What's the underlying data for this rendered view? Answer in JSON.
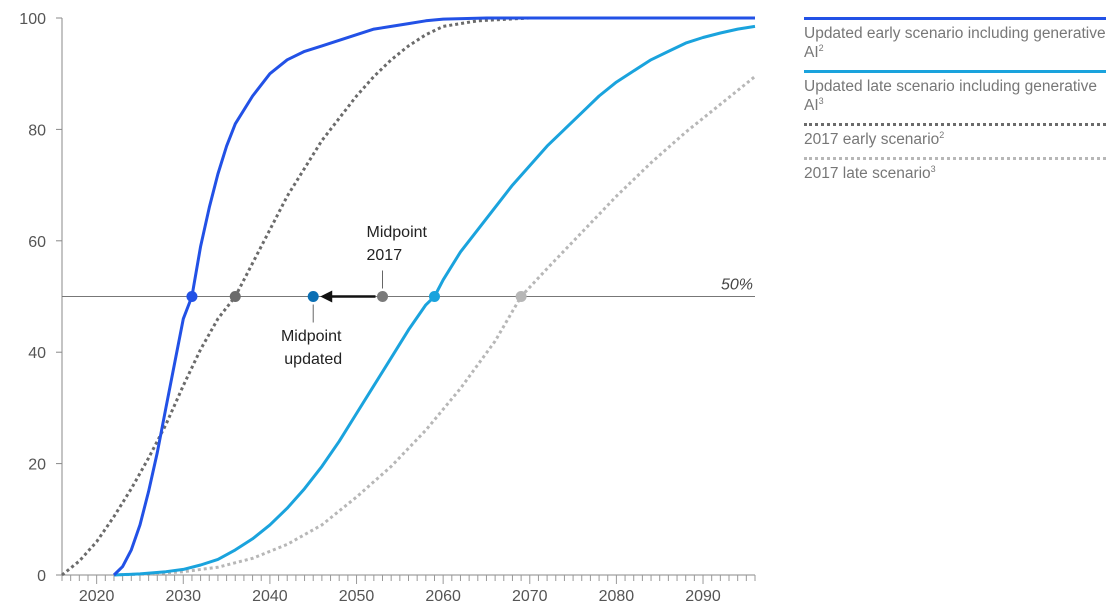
{
  "chart_data": {
    "type": "line",
    "title": "",
    "xlabel": "",
    "ylabel": "",
    "xlim": [
      2016,
      2096
    ],
    "ylim": [
      0,
      100
    ],
    "x_ticks": [
      2020,
      2030,
      2040,
      2050,
      2060,
      2070,
      2080,
      2090
    ],
    "y_ticks": [
      0,
      20,
      40,
      60,
      80,
      100
    ],
    "grid": false,
    "legend_placement": "top-right",
    "reference_line": {
      "y": 50,
      "label": "50%"
    },
    "series": [
      {
        "name": "Updated early scenario including generative AI",
        "footnote": "2",
        "color": "#2251e6",
        "style": "solid",
        "x": [
          2022,
          2023,
          2024,
          2025,
          2026,
          2027,
          2028,
          2029,
          2030,
          2031,
          2032,
          2033,
          2034,
          2035,
          2036,
          2038,
          2040,
          2042,
          2044,
          2046,
          2048,
          2050,
          2052,
          2054,
          2056,
          2058,
          2060,
          2065,
          2070,
          2080,
          2090,
          2096
        ],
        "y": [
          0,
          1.5,
          4.5,
          9,
          15,
          22,
          30,
          38,
          46,
          50,
          59,
          66,
          72,
          77,
          81,
          86,
          90,
          92.5,
          94,
          95,
          96,
          97,
          98,
          98.5,
          99,
          99.5,
          99.8,
          100,
          100,
          100,
          100,
          100
        ]
      },
      {
        "name": "Updated late scenario including generative AI",
        "footnote": "3",
        "color": "#1aa3dd",
        "style": "solid",
        "x": [
          2022,
          2025,
          2028,
          2030,
          2032,
          2034,
          2036,
          2038,
          2040,
          2042,
          2044,
          2046,
          2048,
          2050,
          2052,
          2054,
          2056,
          2058,
          2059,
          2060,
          2062,
          2064,
          2066,
          2068,
          2070,
          2072,
          2074,
          2076,
          2078,
          2080,
          2082,
          2084,
          2086,
          2088,
          2090,
          2092,
          2094,
          2096
        ],
        "y": [
          0,
          0.2,
          0.6,
          1,
          1.8,
          2.8,
          4.5,
          6.5,
          9,
          12,
          15.5,
          19.5,
          24,
          29,
          34,
          39,
          44,
          48.5,
          50,
          53,
          58,
          62,
          66,
          70,
          73.5,
          77,
          80,
          83,
          86,
          88.5,
          90.5,
          92.5,
          94,
          95.5,
          96.5,
          97.3,
          98,
          98.5
        ]
      },
      {
        "name": "2017 early scenario",
        "footnote": "2",
        "color": "#6b6b6b",
        "style": "dotted",
        "x": [
          2016,
          2018,
          2020,
          2022,
          2024,
          2026,
          2028,
          2030,
          2032,
          2034,
          2036,
          2038,
          2040,
          2042,
          2044,
          2046,
          2048,
          2050,
          2052,
          2054,
          2056,
          2058,
          2060,
          2064,
          2070,
          2080,
          2090,
          2096
        ],
        "y": [
          0,
          2.5,
          6,
          10.5,
          15.5,
          21,
          27,
          34,
          40.5,
          46,
          50,
          56,
          62,
          68,
          73,
          78,
          82,
          86,
          89.5,
          92.5,
          95,
          97,
          98.5,
          99.5,
          100,
          100,
          100,
          100
        ]
      },
      {
        "name": "2017 late scenario",
        "footnote": "3",
        "color": "#b7b7b7",
        "style": "dotted",
        "x": [
          2022,
          2026,
          2030,
          2034,
          2038,
          2042,
          2046,
          2050,
          2054,
          2058,
          2062,
          2066,
          2069,
          2072,
          2076,
          2080,
          2084,
          2088,
          2092,
          2096
        ],
        "y": [
          0,
          0.2,
          0.6,
          1.4,
          3,
          5.5,
          9,
          14,
          19.5,
          26,
          33.5,
          42,
          50,
          55,
          61.5,
          68,
          74,
          79.5,
          84.5,
          89.5
        ]
      }
    ],
    "midpoints": [
      {
        "x": 2031,
        "y": 50,
        "color": "#2251e6"
      },
      {
        "x": 2036,
        "y": 50,
        "color": "#6b6b6b"
      },
      {
        "x": 2045,
        "y": 50,
        "color": "#0a6fb4"
      },
      {
        "x": 2053,
        "y": 50,
        "color": "#7a7a7a"
      },
      {
        "x": 2059,
        "y": 50,
        "color": "#1aa3dd"
      },
      {
        "x": 2069,
        "y": 50,
        "color": "#b7b7b7"
      }
    ],
    "annotations": {
      "midpoint_2017": {
        "line1": "Midpoint",
        "line2": "2017",
        "x": 2053
      },
      "midpoint_updated": {
        "line1": "Midpoint",
        "line2": "updated",
        "x": 2045
      },
      "arrow": {
        "from_x": 2053,
        "to_x": 2045,
        "y": 50
      }
    }
  }
}
